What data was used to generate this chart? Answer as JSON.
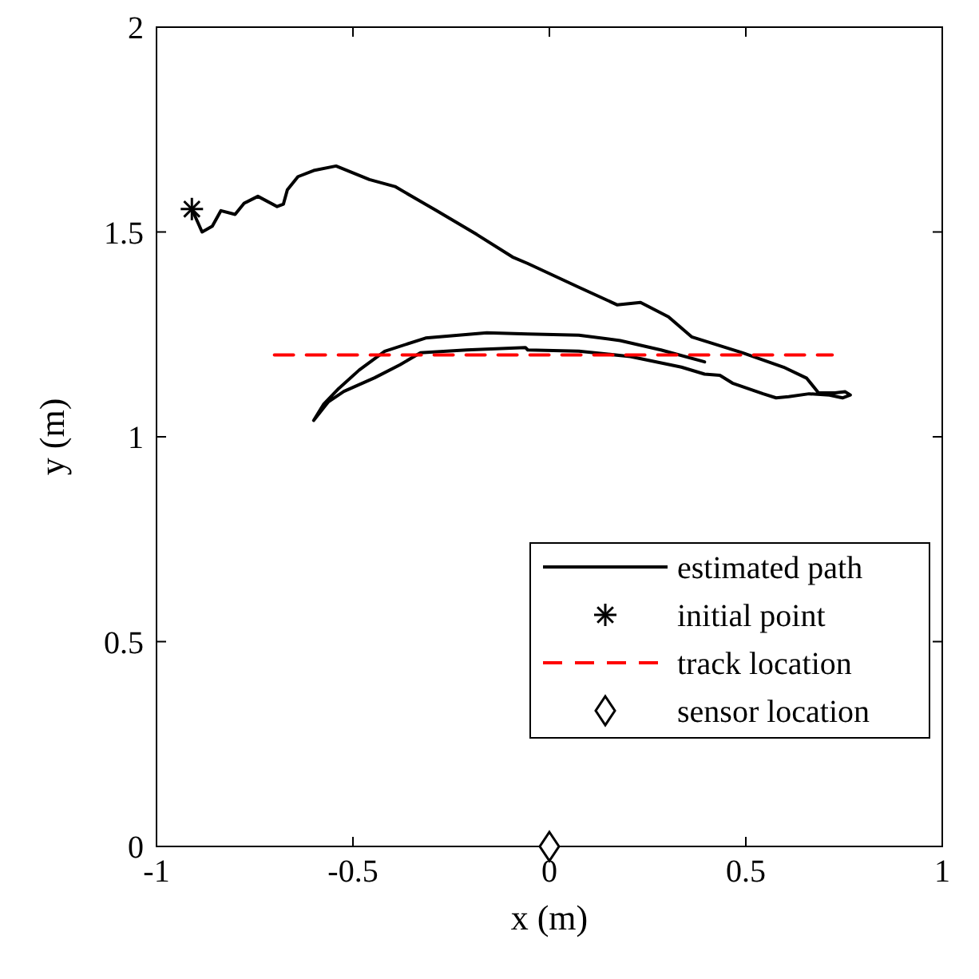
{
  "chart_data": {
    "type": "line",
    "xlabel": "x (m)",
    "ylabel": "y (m)",
    "xlim": [
      -1,
      1
    ],
    "ylim": [
      0,
      2
    ],
    "xticks": [
      -1,
      -0.5,
      0,
      0.5,
      1
    ],
    "yticks": [
      0,
      0.5,
      1,
      1.5,
      2
    ],
    "grid": false,
    "legend": "bottom right",
    "series": [
      {
        "name": "estimated path",
        "color": "#000000",
        "line_style": "solid",
        "marker": "none",
        "x": [
          -0.91,
          -0.884,
          -0.858,
          -0.836,
          -0.8,
          -0.777,
          -0.742,
          -0.693,
          -0.677,
          -0.667,
          -0.64,
          -0.6,
          -0.543,
          -0.458,
          -0.393,
          -0.289,
          -0.185,
          -0.094,
          -0.055,
          0.075,
          0.173,
          0.232,
          0.303,
          0.362,
          0.492,
          0.596,
          0.655,
          0.685,
          0.727,
          0.753,
          0.766,
          0.746,
          0.713,
          0.661,
          0.609,
          0.577,
          0.544,
          0.466,
          0.434,
          0.395,
          0.336,
          0.206,
          0.075,
          -0.055,
          -0.061,
          -0.211,
          -0.328,
          -0.38,
          -0.445,
          -0.523,
          -0.563,
          -0.6,
          -0.575,
          -0.536,
          -0.484,
          -0.419,
          -0.315,
          -0.159,
          -0.055,
          0.075,
          0.18,
          0.284,
          0.395
        ],
        "values": [
          1.556,
          1.5,
          1.514,
          1.552,
          1.543,
          1.57,
          1.587,
          1.562,
          1.568,
          1.603,
          1.635,
          1.65,
          1.661,
          1.628,
          1.611,
          1.553,
          1.494,
          1.439,
          1.423,
          1.365,
          1.322,
          1.328,
          1.293,
          1.244,
          1.205,
          1.17,
          1.143,
          1.107,
          1.107,
          1.11,
          1.102,
          1.095,
          1.102,
          1.105,
          1.098,
          1.095,
          1.105,
          1.131,
          1.15,
          1.153,
          1.17,
          1.196,
          1.209,
          1.212,
          1.218,
          1.212,
          1.205,
          1.176,
          1.144,
          1.111,
          1.085,
          1.04,
          1.079,
          1.118,
          1.163,
          1.209,
          1.241,
          1.254,
          1.251,
          1.248,
          1.235,
          1.212,
          1.183
        ]
      },
      {
        "name": "initial point",
        "type": "scatter",
        "color": "#000000",
        "marker": "cross",
        "x": [
          -0.91
        ],
        "values": [
          1.556
        ]
      },
      {
        "name": "track location",
        "color": "#ff0000",
        "line_style": "dashed",
        "marker": "none",
        "x": [
          -0.7,
          0.72
        ],
        "values": [
          1.2,
          1.2
        ]
      },
      {
        "name": "sensor location",
        "type": "scatter",
        "color": "#000000",
        "marker": "diamond",
        "x": [
          0
        ],
        "values": [
          0
        ]
      }
    ]
  }
}
